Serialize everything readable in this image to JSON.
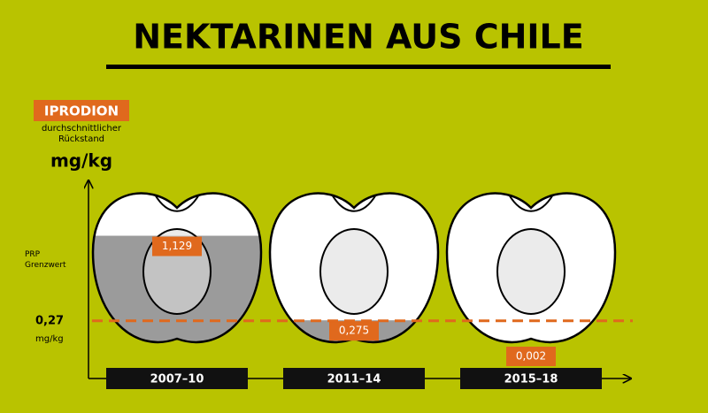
{
  "chart_data": {
    "type": "bar",
    "title": "NEKTARINEN AUS CHILE",
    "badge": "IPRODION",
    "subtitle": "durchschnittlicher Rückstand",
    "y_label": "mg/kg",
    "categories": [
      "2007–10",
      "2011–14",
      "2015–18"
    ],
    "values": [
      1.129,
      0.275,
      0.002
    ],
    "value_labels": [
      "1,129",
      "0,275",
      "0,002"
    ],
    "color": "#9b9b9b",
    "label_color": "#e0691d",
    "ylim": [
      0,
      1.5
    ],
    "reference_line": {
      "label": "PRP Grenzwert",
      "value": 0.27,
      "value_label": "0,27",
      "unit": "mg/kg",
      "color": "#e0691d"
    }
  }
}
